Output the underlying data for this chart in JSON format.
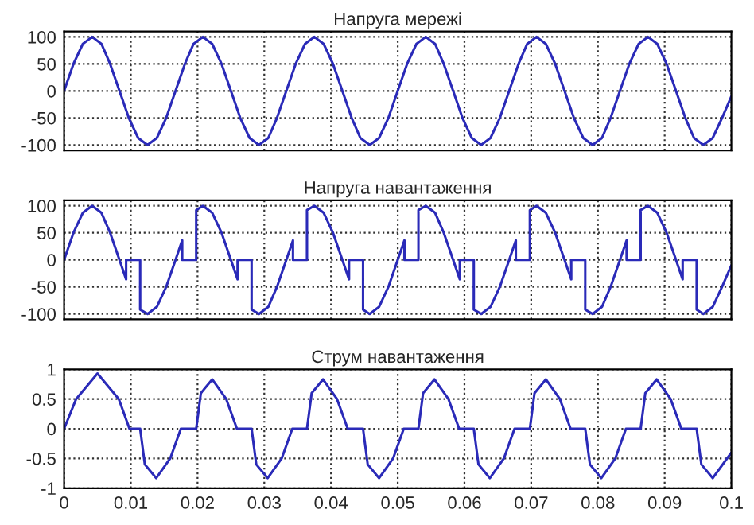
{
  "chart_data": [
    {
      "type": "line",
      "title": "Напруга мережі",
      "xlim": [
        0,
        0.1
      ],
      "xticks": [
        0,
        0.01,
        0.02,
        0.03,
        0.04,
        0.05,
        0.06,
        0.07,
        0.08,
        0.09,
        0.1
      ],
      "ylim": [
        -110,
        110
      ],
      "yticks": [
        -100,
        -50,
        0,
        50,
        100
      ],
      "grid": true,
      "tick_labels": "y",
      "line_style": "solid",
      "series": [
        {
          "color": "#2a2ab8",
          "x": [
            0,
            0.0014,
            0.0028,
            0.0042,
            0.0056,
            0.0069,
            0.0083,
            0.0097,
            0.0111,
            0.0125,
            0.0139,
            0.0153,
            0.0167,
            0.0181,
            0.0194,
            0.0208,
            0.0222,
            0.0236,
            0.025,
            0.0264,
            0.0278,
            0.0292,
            0.0306,
            0.0319,
            0.0333,
            0.0347,
            0.0361,
            0.0375,
            0.0389,
            0.0403,
            0.0417,
            0.0431,
            0.0444,
            0.0458,
            0.0472,
            0.0486,
            0.05,
            0.0514,
            0.0528,
            0.0542,
            0.0556,
            0.0569,
            0.0583,
            0.0597,
            0.0611,
            0.0625,
            0.0639,
            0.0653,
            0.0667,
            0.0681,
            0.0694,
            0.0708,
            0.0722,
            0.0736,
            0.075,
            0.0764,
            0.0778,
            0.0792,
            0.0806,
            0.0819,
            0.0833,
            0.0847,
            0.0861,
            0.0875,
            0.0889,
            0.0903,
            0.0917,
            0.0931,
            0.0944,
            0.0958,
            0.0972,
            0.0986,
            0.1
          ],
          "values": [
            0,
            50,
            87,
            100,
            87,
            50,
            0,
            -50,
            -87,
            -100,
            -87,
            -50,
            0,
            50,
            87,
            100,
            87,
            50,
            0,
            -50,
            -87,
            -100,
            -87,
            -50,
            0,
            50,
            87,
            100,
            87,
            50,
            0,
            -50,
            -87,
            -100,
            -87,
            -50,
            0,
            50,
            87,
            100,
            87,
            50,
            0,
            -50,
            -87,
            -100,
            -87,
            -50,
            0,
            50,
            87,
            100,
            87,
            50,
            0,
            -50,
            -87,
            -100,
            -87,
            -50,
            0,
            50,
            87,
            100,
            87,
            50,
            0,
            -50,
            -87,
            -100,
            -87,
            -50,
            -10
          ]
        }
      ]
    },
    {
      "type": "line",
      "title": "Напруга навантаження",
      "xlim": [
        0,
        0.1
      ],
      "xticks": [
        0,
        0.01,
        0.02,
        0.03,
        0.04,
        0.05,
        0.06,
        0.07,
        0.08,
        0.09,
        0.1
      ],
      "ylim": [
        -110,
        110
      ],
      "yticks": [
        -100,
        -50,
        0,
        50,
        100
      ],
      "grid": true,
      "tick_labels": "y",
      "line_style": "solid",
      "series": [
        {
          "color": "#2a2ab8",
          "x": [
            0,
            0.0014,
            0.0028,
            0.0042,
            0.0056,
            0.0069,
            0.0083,
            0.0093,
            0.0093,
            0.0114,
            0.0114,
            0.0125,
            0.0139,
            0.0153,
            0.0167,
            0.0177,
            0.0177,
            0.0198,
            0.0198,
            0.0208,
            0.0222,
            0.0236,
            0.025,
            0.026,
            0.026,
            0.0281,
            0.0281,
            0.0292,
            0.0306,
            0.0319,
            0.0333,
            0.0343,
            0.0343,
            0.0364,
            0.0364,
            0.0375,
            0.0389,
            0.0403,
            0.0417,
            0.0427,
            0.0427,
            0.0448,
            0.0448,
            0.0458,
            0.0472,
            0.0486,
            0.05,
            0.051,
            0.051,
            0.0531,
            0.0531,
            0.0542,
            0.0556,
            0.0569,
            0.0583,
            0.0593,
            0.0593,
            0.0614,
            0.0614,
            0.0625,
            0.0639,
            0.0653,
            0.0667,
            0.0677,
            0.0677,
            0.0698,
            0.0698,
            0.0708,
            0.0722,
            0.0736,
            0.075,
            0.076,
            0.076,
            0.0781,
            0.0781,
            0.0792,
            0.0806,
            0.0819,
            0.0833,
            0.0843,
            0.0843,
            0.0864,
            0.0864,
            0.0875,
            0.0889,
            0.0903,
            0.0917,
            0.0927,
            0.0927,
            0.0948,
            0.0948,
            0.0958,
            0.0972,
            0.0986,
            0.1
          ],
          "values": [
            0,
            50,
            87,
            100,
            87,
            50,
            0,
            -36,
            0,
            0,
            -92,
            -100,
            -87,
            -50,
            0,
            36,
            0,
            0,
            92,
            100,
            87,
            50,
            0,
            -36,
            0,
            0,
            -92,
            -100,
            -87,
            -50,
            0,
            36,
            0,
            0,
            92,
            100,
            87,
            50,
            0,
            -36,
            0,
            0,
            -92,
            -100,
            -87,
            -50,
            0,
            36,
            0,
            0,
            92,
            100,
            87,
            50,
            0,
            -36,
            0,
            0,
            -92,
            -100,
            -87,
            -50,
            0,
            36,
            0,
            0,
            92,
            100,
            87,
            50,
            0,
            -36,
            0,
            0,
            -92,
            -100,
            -87,
            -50,
            0,
            36,
            0,
            0,
            92,
            100,
            87,
            50,
            0,
            -36,
            0,
            0,
            -92,
            -100,
            -87,
            -50,
            -10
          ]
        }
      ]
    },
    {
      "type": "line",
      "title": "Струм навантаження",
      "xlim": [
        0,
        0.1
      ],
      "xticks": [
        0,
        0.01,
        0.02,
        0.03,
        0.04,
        0.05,
        0.06,
        0.07,
        0.08,
        0.09,
        0.1
      ],
      "ylim": [
        -1,
        1
      ],
      "yticks": [
        -1,
        -0.5,
        0,
        0.5,
        1
      ],
      "grid": true,
      "line_style": "solid",
      "series": [
        {
          "color": "#2a2ab8",
          "x": [
            0,
            0.0018,
            0.005,
            0.0082,
            0.0098,
            0.0114,
            0.0121,
            0.0138,
            0.0159,
            0.0175,
            0.0198,
            0.0205,
            0.0222,
            0.0243,
            0.0259,
            0.0281,
            0.0288,
            0.0305,
            0.0326,
            0.0342,
            0.0364,
            0.0371,
            0.0388,
            0.0409,
            0.0425,
            0.0448,
            0.0455,
            0.0472,
            0.0493,
            0.0509,
            0.0531,
            0.0538,
            0.0555,
            0.0576,
            0.0592,
            0.0614,
            0.0621,
            0.0638,
            0.0659,
            0.0675,
            0.0698,
            0.0705,
            0.0722,
            0.0743,
            0.0759,
            0.0781,
            0.0788,
            0.0805,
            0.0826,
            0.0842,
            0.0864,
            0.0871,
            0.0888,
            0.0909,
            0.0925,
            0.0948,
            0.0955,
            0.0972,
            0.1
          ],
          "values": [
            0,
            0.5,
            0.93,
            0.5,
            0,
            0,
            -0.6,
            -0.83,
            -0.5,
            0,
            0,
            0.6,
            0.83,
            0.5,
            0,
            0,
            -0.6,
            -0.83,
            -0.5,
            0,
            0,
            0.6,
            0.83,
            0.5,
            0,
            0,
            -0.6,
            -0.83,
            -0.5,
            0,
            0,
            0.6,
            0.83,
            0.5,
            0,
            0,
            -0.6,
            -0.83,
            -0.5,
            0,
            0,
            0.6,
            0.83,
            0.5,
            0,
            0,
            -0.6,
            -0.83,
            -0.5,
            0,
            0,
            0.6,
            0.83,
            0.5,
            0,
            0,
            -0.6,
            -0.83,
            -0.4
          ]
        }
      ]
    }
  ]
}
